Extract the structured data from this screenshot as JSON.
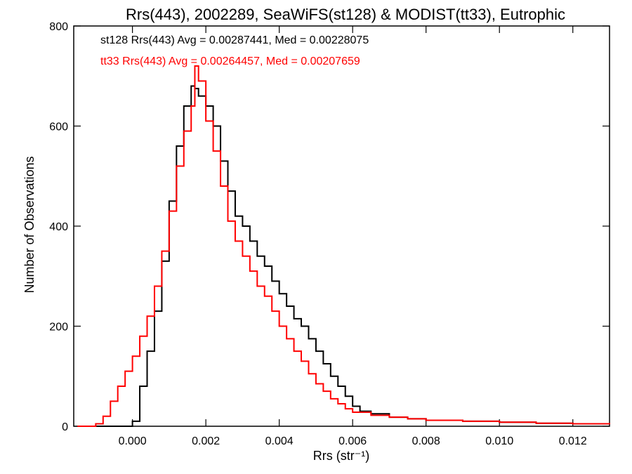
{
  "chart_data": {
    "type": "histogram",
    "title": "Rrs(443), 2002289, SeaWiFS(st128) & MODIST(tt33), Eutrophic",
    "xlabel": "Rrs (str⁻¹)",
    "ylabel": "Number of Observations",
    "xlim": [
      -0.0016,
      0.013
    ],
    "ylim": [
      0,
      800
    ],
    "x_ticks": [
      0.0,
      0.002,
      0.004,
      0.006,
      0.008,
      0.01,
      0.012
    ],
    "x_tick_labels": [
      "0.000",
      "0.002",
      "0.004",
      "0.006",
      "0.008",
      "0.010",
      "0.012"
    ],
    "y_ticks": [
      0,
      200,
      400,
      600,
      800
    ],
    "y_tick_labels": [
      "0",
      "200",
      "400",
      "600",
      "800"
    ],
    "annotations": [
      {
        "text": "st128 Rrs(443) Avg = 0.00287441, Med = 0.00228075",
        "color": "#000000"
      },
      {
        "text": "tt33 Rrs(443) Avg = 0.00264457, Med = 0.00207659",
        "color": "#ff0000"
      }
    ],
    "series": [
      {
        "color": "#000000",
        "x": [
          -0.0015,
          -0.001,
          -0.0006,
          -0.0002,
          0.0,
          0.0002,
          0.0004,
          0.0006,
          0.0008,
          0.001,
          0.0012,
          0.0014,
          0.0016,
          0.0017,
          0.0018,
          0.002,
          0.0022,
          0.0024,
          0.0026,
          0.0028,
          0.003,
          0.0032,
          0.0034,
          0.0036,
          0.0038,
          0.004,
          0.0042,
          0.0044,
          0.0046,
          0.0048,
          0.005,
          0.0052,
          0.0054,
          0.0056,
          0.0058,
          0.006,
          0.0062,
          0.0065,
          0.007,
          0.0075,
          0.008,
          0.009,
          0.01,
          0.011,
          0.012,
          0.013
        ],
        "y": [
          0,
          0,
          0,
          0,
          10,
          80,
          150,
          230,
          330,
          450,
          560,
          640,
          680,
          675,
          660,
          640,
          600,
          530,
          470,
          420,
          400,
          370,
          340,
          320,
          290,
          265,
          240,
          215,
          200,
          175,
          150,
          125,
          100,
          80,
          60,
          40,
          30,
          25,
          18,
          15,
          12,
          10,
          8,
          6,
          5,
          4
        ]
      },
      {
        "color": "#ff0000",
        "x": [
          -0.0015,
          -0.001,
          -0.0008,
          -0.0006,
          -0.0004,
          -0.0002,
          0.0,
          0.0002,
          0.0004,
          0.0006,
          0.0008,
          0.001,
          0.0012,
          0.0014,
          0.0016,
          0.0017,
          0.0018,
          0.002,
          0.0022,
          0.0024,
          0.0026,
          0.0028,
          0.003,
          0.0032,
          0.0034,
          0.0036,
          0.0038,
          0.004,
          0.0042,
          0.0044,
          0.0046,
          0.0048,
          0.005,
          0.0052,
          0.0054,
          0.0056,
          0.0058,
          0.006,
          0.0065,
          0.007,
          0.0075,
          0.008,
          0.009,
          0.01,
          0.011,
          0.012,
          0.013
        ],
        "y": [
          0,
          5,
          20,
          50,
          80,
          110,
          140,
          180,
          220,
          280,
          350,
          430,
          520,
          590,
          640,
          720,
          690,
          610,
          550,
          480,
          410,
          370,
          340,
          310,
          280,
          260,
          230,
          200,
          175,
          150,
          130,
          105,
          85,
          70,
          55,
          45,
          35,
          28,
          22,
          18,
          15,
          12,
          10,
          8,
          6,
          5,
          4
        ]
      }
    ]
  }
}
